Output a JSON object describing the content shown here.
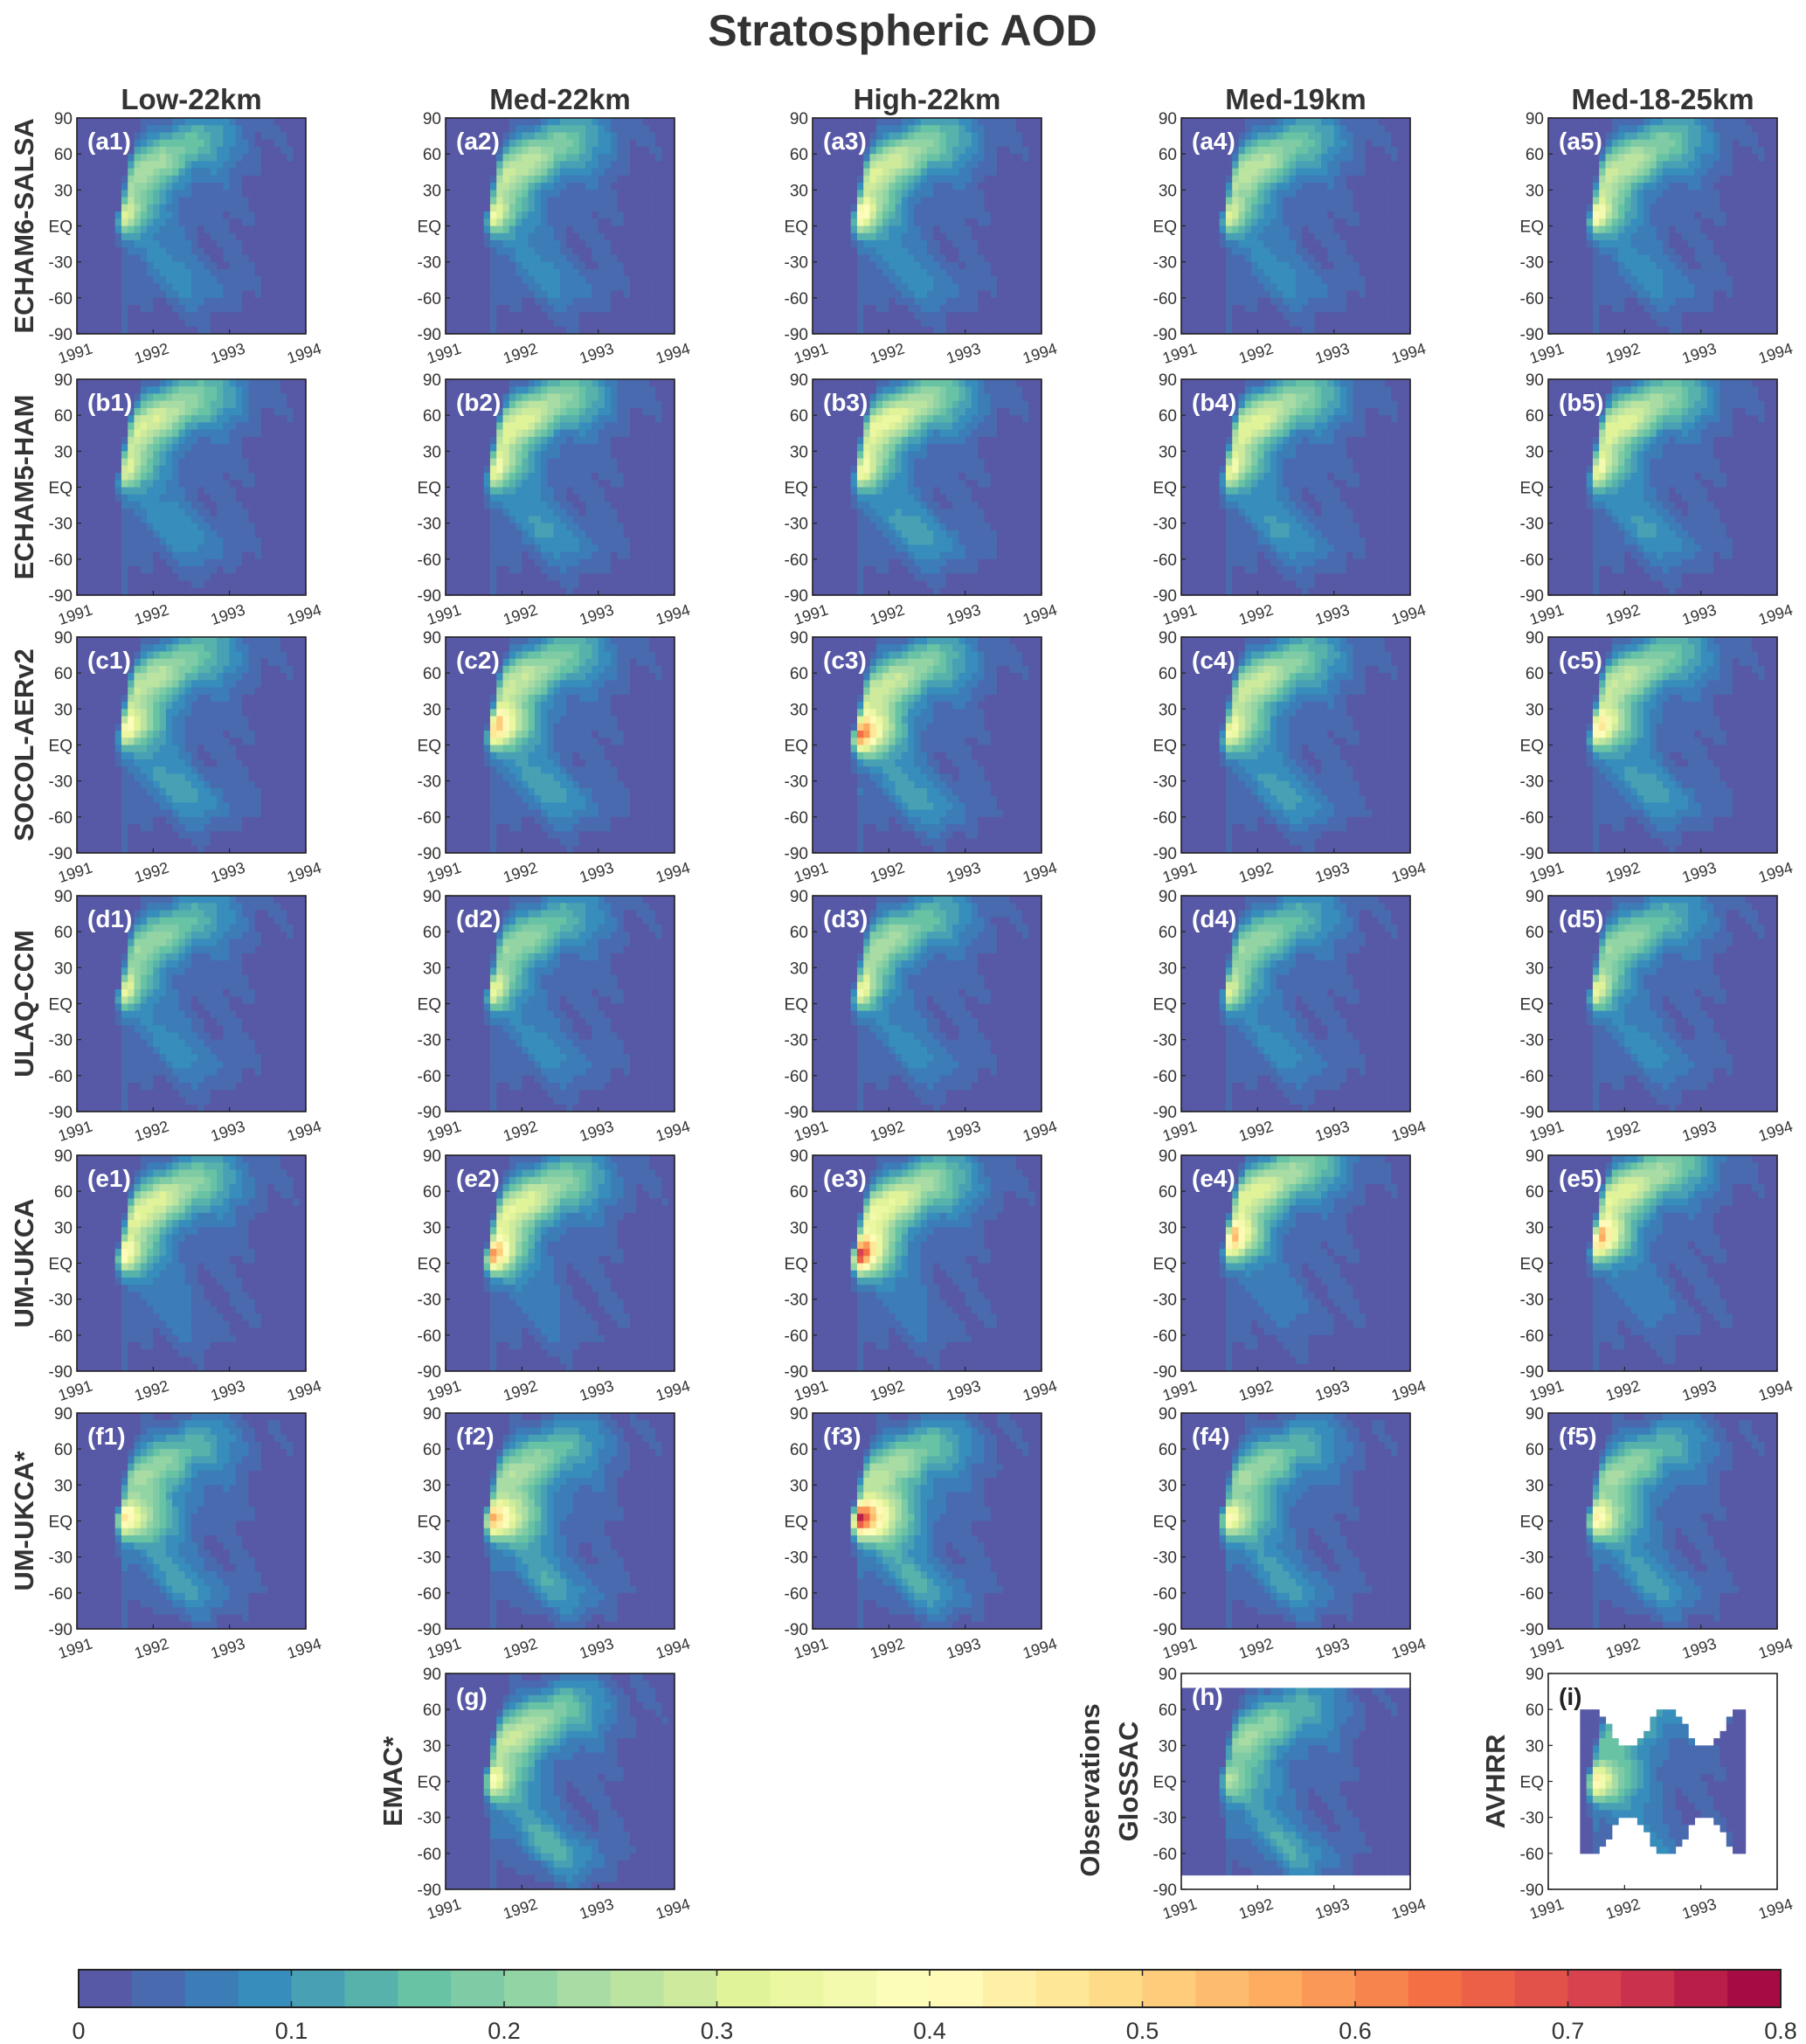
{
  "chart_data": {
    "type": "heatmap",
    "title": "Stratospheric AOD",
    "columns": [
      "Low-22km",
      "Med-22km",
      "High-22km",
      "Med-19km",
      "Med-18-25km"
    ],
    "rows": [
      "ECHAM6-SALSA",
      "ECHAM5-HAM",
      "SOCOL-AERv2",
      "ULAQ-CCM",
      "UM-UKCA",
      "UM-UKCA*"
    ],
    "extra_labels": {
      "g": "EMAC*",
      "h_line1": "Observations",
      "h_line2": "GloSSAC",
      "i": "AVHRR"
    },
    "y_ticks": [
      "90",
      "60",
      "30",
      "EQ",
      "-30",
      "-60",
      "-90"
    ],
    "y_tick_values": [
      90,
      60,
      30,
      0,
      -30,
      -60,
      -90
    ],
    "x_ticks": [
      "1991",
      "1992",
      "1993",
      "1994"
    ],
    "x_tick_values": [
      1991,
      1992,
      1993,
      1994
    ],
    "xlim": [
      1991,
      1994
    ],
    "ylim": [
      -90,
      90
    ],
    "colorbar": {
      "min": 0,
      "max": 0.8,
      "step": 0.025,
      "ticks": [
        "0",
        "0.1",
        "0.2",
        "0.3",
        "0.4",
        "0.5",
        "0.6",
        "0.7",
        "0.8"
      ],
      "tick_values": [
        0,
        0.1,
        0.2,
        0.3,
        0.4,
        0.5,
        0.6,
        0.7,
        0.8
      ],
      "colors": [
        "#5e4fa2",
        "#3288bd",
        "#66c2a5",
        "#abdda4",
        "#e6f598",
        "#ffffbf",
        "#fee08b",
        "#fdae61",
        "#f46d43",
        "#d53e4f",
        "#9e0142"
      ]
    },
    "panels": [
      {
        "id": "a1",
        "label": "(a1)",
        "row": 0,
        "col": 0,
        "peak": 0.3,
        "lat": 10,
        "north": 0.6,
        "south": 0.3,
        "spread": 0.3
      },
      {
        "id": "a2",
        "label": "(a2)",
        "row": 0,
        "col": 1,
        "peak": 0.34,
        "lat": 10,
        "north": 0.72,
        "south": 0.3,
        "spread": 0.3
      },
      {
        "id": "a3",
        "label": "(a3)",
        "row": 0,
        "col": 2,
        "peak": 0.42,
        "lat": 10,
        "north": 0.78,
        "south": 0.32,
        "spread": 0.32
      },
      {
        "id": "a4",
        "label": "(a4)",
        "row": 0,
        "col": 3,
        "peak": 0.3,
        "lat": 10,
        "north": 0.68,
        "south": 0.3,
        "spread": 0.3
      },
      {
        "id": "a5",
        "label": "(a5)",
        "row": 0,
        "col": 4,
        "peak": 0.4,
        "lat": 10,
        "north": 0.72,
        "south": 0.3,
        "spread": 0.3
      },
      {
        "id": "b1",
        "label": "(b1)",
        "row": 1,
        "col": 0,
        "peak": 0.32,
        "lat": 15,
        "north": 0.8,
        "south": 0.35,
        "spread": 0.3
      },
      {
        "id": "b2",
        "label": "(b2)",
        "row": 1,
        "col": 1,
        "peak": 0.36,
        "lat": 15,
        "north": 0.85,
        "south": 0.4,
        "spread": 0.3
      },
      {
        "id": "b3",
        "label": "(b3)",
        "row": 1,
        "col": 2,
        "peak": 0.38,
        "lat": 15,
        "north": 0.9,
        "south": 0.45,
        "spread": 0.3
      },
      {
        "id": "b4",
        "label": "(b4)",
        "row": 1,
        "col": 3,
        "peak": 0.36,
        "lat": 15,
        "north": 0.85,
        "south": 0.4,
        "spread": 0.3
      },
      {
        "id": "b5",
        "label": "(b5)",
        "row": 1,
        "col": 4,
        "peak": 0.36,
        "lat": 15,
        "north": 0.85,
        "south": 0.4,
        "spread": 0.3
      },
      {
        "id": "c1",
        "label": "(c1)",
        "row": 2,
        "col": 0,
        "peak": 0.4,
        "lat": 15,
        "north": 0.7,
        "south": 0.45,
        "spread": 0.35
      },
      {
        "id": "c2",
        "label": "(c2)",
        "row": 2,
        "col": 1,
        "peak": 0.56,
        "lat": 15,
        "north": 0.72,
        "south": 0.45,
        "spread": 0.35
      },
      {
        "id": "c3",
        "label": "(c3)",
        "row": 2,
        "col": 2,
        "peak": 0.66,
        "lat": 10,
        "north": 0.75,
        "south": 0.45,
        "spread": 0.35
      },
      {
        "id": "c4",
        "label": "(c4)",
        "row": 2,
        "col": 3,
        "peak": 0.36,
        "lat": 12,
        "north": 0.75,
        "south": 0.45,
        "spread": 0.35
      },
      {
        "id": "c5",
        "label": "(c5)",
        "row": 2,
        "col": 4,
        "peak": 0.48,
        "lat": 15,
        "north": 0.72,
        "south": 0.45,
        "spread": 0.35
      },
      {
        "id": "d1",
        "label": "(d1)",
        "row": 3,
        "col": 0,
        "peak": 0.34,
        "lat": 12,
        "north": 0.55,
        "south": 0.3,
        "spread": 0.25
      },
      {
        "id": "d2",
        "label": "(d2)",
        "row": 3,
        "col": 1,
        "peak": 0.36,
        "lat": 12,
        "north": 0.55,
        "south": 0.3,
        "spread": 0.25
      },
      {
        "id": "d3",
        "label": "(d3)",
        "row": 3,
        "col": 2,
        "peak": 0.38,
        "lat": 12,
        "north": 0.6,
        "south": 0.3,
        "spread": 0.25
      },
      {
        "id": "d4",
        "label": "(d4)",
        "row": 3,
        "col": 3,
        "peak": 0.32,
        "lat": 12,
        "north": 0.55,
        "south": 0.3,
        "spread": 0.25
      },
      {
        "id": "d5",
        "label": "(d5)",
        "row": 3,
        "col": 4,
        "peak": 0.36,
        "lat": 12,
        "north": 0.55,
        "south": 0.3,
        "spread": 0.25
      },
      {
        "id": "e1",
        "label": "(e1)",
        "row": 4,
        "col": 0,
        "peak": 0.4,
        "lat": 8,
        "north": 0.85,
        "south": 0.15,
        "spread": 0.3
      },
      {
        "id": "e2",
        "label": "(e2)",
        "row": 4,
        "col": 1,
        "peak": 0.6,
        "lat": 8,
        "north": 0.85,
        "south": 0.15,
        "spread": 0.3
      },
      {
        "id": "e3",
        "label": "(e3)",
        "row": 4,
        "col": 2,
        "peak": 0.76,
        "lat": 8,
        "north": 0.9,
        "south": 0.15,
        "spread": 0.3
      },
      {
        "id": "e4",
        "label": "(e4)",
        "row": 4,
        "col": 3,
        "peak": 0.58,
        "lat": 20,
        "north": 0.85,
        "south": 0.15,
        "spread": 0.3
      },
      {
        "id": "e5",
        "label": "(e5)",
        "row": 4,
        "col": 4,
        "peak": 0.6,
        "lat": 20,
        "north": 0.85,
        "south": 0.15,
        "spread": 0.3
      },
      {
        "id": "f1",
        "label": "(f1)",
        "row": 5,
        "col": 0,
        "peak": 0.42,
        "lat": 2,
        "north": 0.55,
        "south": 0.45,
        "spread": 0.45
      },
      {
        "id": "f2",
        "label": "(f2)",
        "row": 5,
        "col": 1,
        "peak": 0.52,
        "lat": 2,
        "north": 0.6,
        "south": 0.5,
        "spread": 0.45
      },
      {
        "id": "f3",
        "label": "(f3)",
        "row": 5,
        "col": 2,
        "peak": 0.72,
        "lat": 2,
        "north": 0.65,
        "south": 0.55,
        "spread": 0.45
      },
      {
        "id": "f4",
        "label": "(f4)",
        "row": 5,
        "col": 3,
        "peak": 0.36,
        "lat": 2,
        "north": 0.55,
        "south": 0.45,
        "spread": 0.4
      },
      {
        "id": "f5",
        "label": "(f5)",
        "row": 5,
        "col": 4,
        "peak": 0.4,
        "lat": 2,
        "north": 0.55,
        "south": 0.45,
        "spread": 0.4
      },
      {
        "id": "g",
        "label": "(g)",
        "row": 6,
        "col": 1,
        "peak": 0.34,
        "lat": 0,
        "north": 0.7,
        "south": 0.6,
        "spread": 0.35
      },
      {
        "id": "h",
        "label": "(h)",
        "row": 6,
        "col": 3,
        "peak": 0.2,
        "lat": 0,
        "north": 0.55,
        "south": 0.55,
        "spread": 0.45
      },
      {
        "id": "i",
        "label": "(i)",
        "row": 6,
        "col": 4,
        "peak": 0.4,
        "lat": 0,
        "north": 0.35,
        "south": 0.3,
        "spread": 0.4
      }
    ]
  }
}
